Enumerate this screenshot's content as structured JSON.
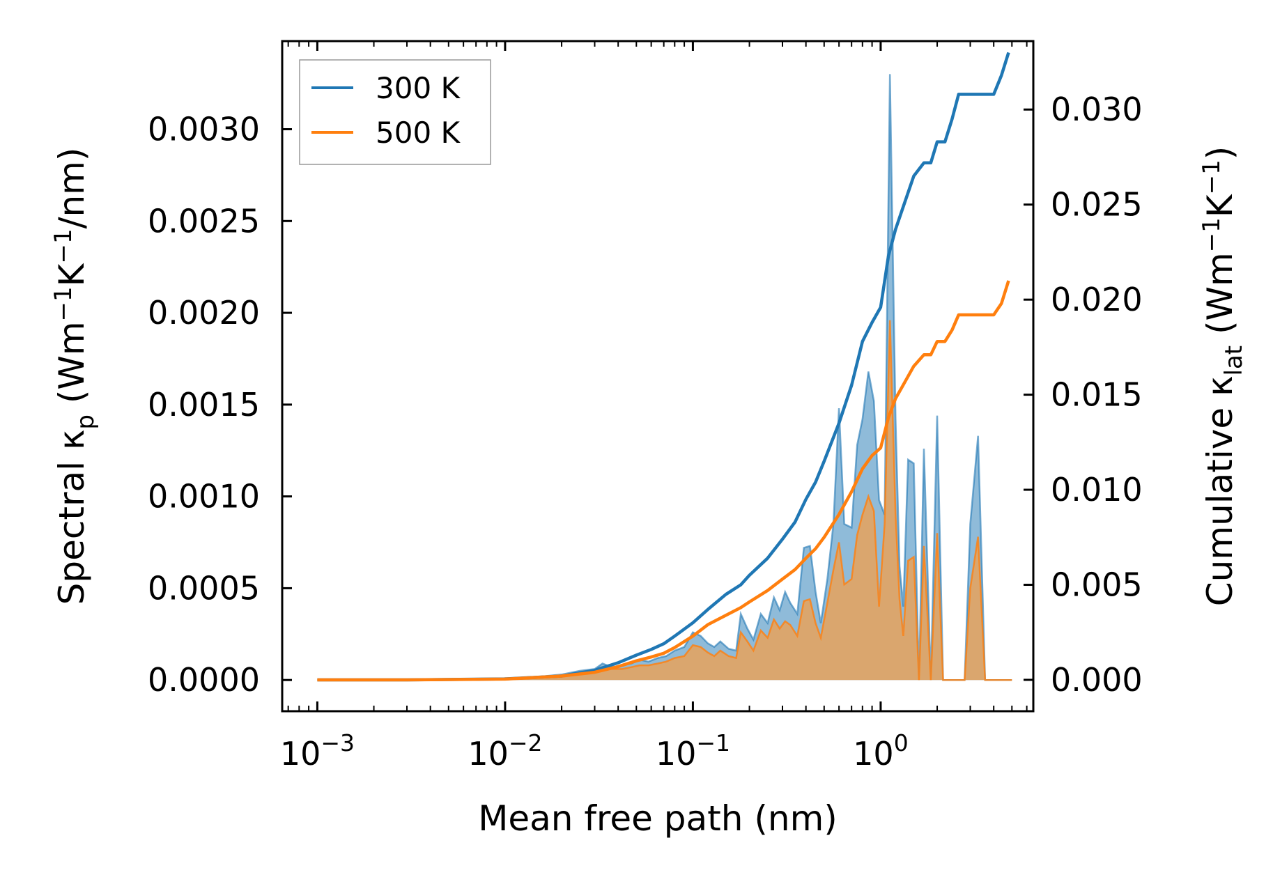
{
  "chart_data": {
    "type": "line",
    "xlabel": "Mean free path (nm)",
    "xscale": "log",
    "xlim": [
      0.00065,
      6.5
    ],
    "xticks": [
      {
        "value": 0.001,
        "base": "10",
        "exp": "−3"
      },
      {
        "value": 0.01,
        "base": "10",
        "exp": "−2"
      },
      {
        "value": 0.1,
        "base": "10",
        "exp": "−1"
      },
      {
        "value": 1,
        "base": "10",
        "exp": "0"
      }
    ],
    "ylabel_left": {
      "pre": "Spectral κ",
      "sub": "p",
      "mid1": " (Wm",
      "sup1": "−1",
      "mid2": "K",
      "sup2": "−1",
      "post": "/nm)"
    },
    "ylabel_right": {
      "pre": "Cumulative κ",
      "sub": "lat",
      "mid1": " (Wm",
      "sup1": "−1",
      "mid2": "K",
      "sup2": "−1",
      "post": ")"
    },
    "ylim_left": [
      -0.00017,
      0.00348
    ],
    "ylim_right": [
      -0.00165,
      0.0336
    ],
    "yticks_left": [
      "0.0000",
      "0.0005",
      "0.0010",
      "0.0015",
      "0.0020",
      "0.0025",
      "0.0030"
    ],
    "yticks_right": [
      "0.000",
      "0.005",
      "0.010",
      "0.015",
      "0.020",
      "0.025",
      "0.030"
    ],
    "legend": {
      "position": "top-left",
      "entries": [
        "300 K",
        "500 K"
      ]
    },
    "colors": {
      "300 K": "#1f77b4",
      "500 K": "#ff7f0e",
      "fill_300": "#1f77b4",
      "fill_500": "#e8a25a"
    },
    "series": [
      {
        "name": "300 K",
        "role": "spectral",
        "axis": "left",
        "x": [
          0.001,
          0.0015,
          0.002,
          0.003,
          0.005,
          0.007,
          0.01,
          0.013,
          0.016,
          0.02,
          0.025,
          0.03,
          0.033,
          0.037,
          0.042,
          0.047,
          0.052,
          0.058,
          0.065,
          0.072,
          0.08,
          0.09,
          0.1,
          0.11,
          0.12,
          0.13,
          0.14,
          0.155,
          0.17,
          0.18,
          0.195,
          0.21,
          0.23,
          0.25,
          0.27,
          0.29,
          0.31,
          0.33,
          0.36,
          0.39,
          0.42,
          0.45,
          0.48,
          0.52,
          0.56,
          0.6,
          0.64,
          0.7,
          0.75,
          0.8,
          0.86,
          0.92,
          0.98,
          1.05,
          1.12,
          1.2,
          1.26,
          1.32,
          1.4,
          1.5,
          1.6,
          1.7,
          1.85,
          2.0,
          2.15,
          2.3,
          2.5,
          2.65,
          2.8,
          3.0,
          3.3,
          3.6,
          4.0,
          4.4,
          4.8,
          5.0
        ],
        "y": [
          0.0,
          0.0,
          0.0,
          0.0,
          0.0,
          0.0,
          1e-05,
          1e-05,
          2e-05,
          3e-05,
          5e-05,
          6e-05,
          9e-05,
          7e-05,
          8e-05,
          9e-05,
          0.00011,
          0.0001,
          0.00012,
          0.00013,
          0.00016,
          0.00018,
          0.00026,
          0.00024,
          0.0002,
          0.00018,
          0.00021,
          0.00017,
          0.00016,
          0.00036,
          0.00028,
          0.00022,
          0.00036,
          0.00031,
          0.00045,
          0.00038,
          0.00048,
          0.00042,
          0.00036,
          0.00072,
          0.00073,
          0.00048,
          0.00031,
          0.00055,
          0.00085,
          0.00148,
          0.00085,
          0.00083,
          0.00128,
          0.00142,
          0.00168,
          0.00152,
          0.00098,
          0.0009,
          0.0033,
          0.00142,
          0.00062,
          0.0004,
          0.0012,
          0.00118,
          0.0,
          0.00126,
          0.0,
          0.00144,
          0.0,
          0.0,
          0.0,
          0.0,
          0.0,
          0.00085,
          0.00133,
          0.0,
          0.0,
          0.0,
          0.0,
          0.0
        ]
      },
      {
        "name": "500 K",
        "role": "spectral",
        "axis": "left",
        "x": [
          0.001,
          0.0015,
          0.002,
          0.003,
          0.005,
          0.007,
          0.01,
          0.013,
          0.016,
          0.02,
          0.025,
          0.03,
          0.033,
          0.037,
          0.042,
          0.047,
          0.052,
          0.058,
          0.065,
          0.072,
          0.08,
          0.09,
          0.1,
          0.11,
          0.12,
          0.13,
          0.14,
          0.155,
          0.17,
          0.18,
          0.195,
          0.21,
          0.23,
          0.25,
          0.27,
          0.29,
          0.31,
          0.33,
          0.36,
          0.39,
          0.42,
          0.45,
          0.48,
          0.52,
          0.56,
          0.6,
          0.64,
          0.7,
          0.75,
          0.8,
          0.86,
          0.92,
          0.98,
          1.05,
          1.12,
          1.2,
          1.26,
          1.32,
          1.4,
          1.5,
          1.6,
          1.7,
          1.85,
          2.0,
          2.15,
          2.3,
          2.5,
          2.65,
          2.8,
          3.0,
          3.3,
          3.6,
          4.0,
          4.4,
          4.8,
          5.0
        ],
        "y": [
          0.0,
          0.0,
          0.0,
          0.0,
          0.0,
          0.0,
          1e-05,
          1e-05,
          2e-05,
          2e-05,
          4e-05,
          5e-05,
          7e-05,
          6e-05,
          6e-05,
          7e-05,
          8e-05,
          8e-05,
          9e-05,
          0.0001,
          0.00012,
          0.00013,
          0.00019,
          0.00018,
          0.00015,
          0.00013,
          0.00016,
          0.00013,
          0.00012,
          0.00026,
          0.00021,
          0.00016,
          0.00027,
          0.00023,
          0.00033,
          0.00028,
          0.00032,
          0.0003,
          0.00024,
          0.00043,
          0.00044,
          0.00031,
          0.00023,
          0.00042,
          0.0006,
          0.00075,
          0.00052,
          0.00055,
          0.00079,
          0.0009,
          0.001,
          0.00092,
          0.0004,
          0.00085,
          0.00196,
          0.0009,
          0.00044,
          0.00024,
          0.00065,
          0.00067,
          0.0,
          0.00073,
          0.0,
          0.0008,
          0.0,
          0.0,
          0.0,
          0.0,
          0.0,
          0.0005,
          0.00078,
          0.0,
          0.0,
          0.0,
          0.0,
          0.0
        ]
      },
      {
        "name": "300 K",
        "role": "cumulative",
        "axis": "right",
        "x": [
          0.001,
          0.003,
          0.01,
          0.02,
          0.03,
          0.04,
          0.05,
          0.06,
          0.07,
          0.08,
          0.1,
          0.12,
          0.15,
          0.18,
          0.2,
          0.25,
          0.3,
          0.35,
          0.4,
          0.45,
          0.5,
          0.6,
          0.7,
          0.8,
          0.9,
          1.0,
          1.1,
          1.2,
          1.3,
          1.5,
          1.7,
          1.85,
          2.0,
          2.2,
          2.4,
          2.6,
          2.8,
          3.2,
          3.6,
          4.0,
          4.4,
          4.8
        ],
        "y": [
          0.0,
          0.0,
          5e-05,
          0.0002,
          0.0005,
          0.0009,
          0.0013,
          0.0016,
          0.0019,
          0.0023,
          0.003,
          0.0037,
          0.0045,
          0.005,
          0.0055,
          0.0064,
          0.0074,
          0.0083,
          0.0095,
          0.0104,
          0.0115,
          0.0135,
          0.0155,
          0.0178,
          0.0188,
          0.0196,
          0.0223,
          0.0237,
          0.0247,
          0.0265,
          0.0272,
          0.0272,
          0.0283,
          0.0283,
          0.0295,
          0.0308,
          0.0308,
          0.0308,
          0.0308,
          0.0308,
          0.0318,
          0.033
        ]
      },
      {
        "name": "500 K",
        "role": "cumulative",
        "axis": "right",
        "x": [
          0.001,
          0.003,
          0.01,
          0.02,
          0.03,
          0.04,
          0.05,
          0.06,
          0.07,
          0.08,
          0.1,
          0.12,
          0.15,
          0.18,
          0.2,
          0.25,
          0.3,
          0.35,
          0.4,
          0.45,
          0.5,
          0.6,
          0.7,
          0.8,
          0.9,
          1.0,
          1.1,
          1.2,
          1.3,
          1.5,
          1.7,
          1.85,
          2.0,
          2.2,
          2.4,
          2.6,
          2.8,
          3.2,
          3.6,
          4.0,
          4.4,
          4.8
        ],
        "y": [
          0.0,
          0.0,
          4e-05,
          0.0002,
          0.0004,
          0.0007,
          0.001,
          0.0012,
          0.0014,
          0.0017,
          0.0023,
          0.0029,
          0.0034,
          0.0038,
          0.0041,
          0.0047,
          0.0053,
          0.0058,
          0.0064,
          0.0069,
          0.0075,
          0.0087,
          0.0099,
          0.0111,
          0.0118,
          0.0122,
          0.0138,
          0.0148,
          0.0154,
          0.0165,
          0.0171,
          0.0171,
          0.0178,
          0.0178,
          0.0184,
          0.0192,
          0.0192,
          0.0192,
          0.0192,
          0.0192,
          0.0198,
          0.021
        ]
      }
    ]
  }
}
